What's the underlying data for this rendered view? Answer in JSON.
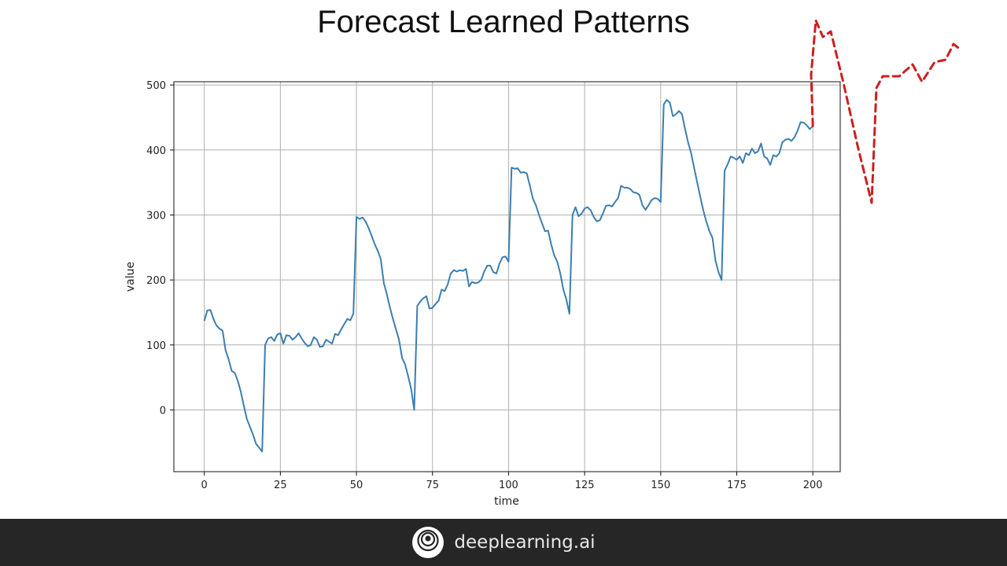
{
  "slide": {
    "title": "Forecast Learned Patterns"
  },
  "footer": {
    "brand": "deeplearning.ai",
    "logo_icon": "deeplearning-ai-logo-icon"
  },
  "chart_data": {
    "type": "line",
    "title": "",
    "xlabel": "time",
    "ylabel": "value",
    "xlim": [
      -10,
      209
    ],
    "ylim": [
      -95,
      505
    ],
    "xticks": [
      0,
      25,
      50,
      75,
      100,
      125,
      150,
      175,
      200
    ],
    "yticks": [
      0,
      100,
      200,
      300,
      400,
      500
    ],
    "grid": true,
    "series": [
      {
        "color": "#3b7fb0",
        "style": "solid",
        "points": [
          [
            0,
            137
          ],
          [
            1,
            153
          ],
          [
            2,
            154
          ],
          [
            3,
            140
          ],
          [
            4,
            130
          ],
          [
            5,
            125
          ],
          [
            6,
            122
          ],
          [
            7,
            92
          ],
          [
            8,
            78
          ],
          [
            9,
            60
          ],
          [
            10,
            57
          ],
          [
            11,
            45
          ],
          [
            12,
            28
          ],
          [
            13,
            6
          ],
          [
            14,
            -14
          ],
          [
            15,
            -26
          ],
          [
            16,
            -38
          ],
          [
            17,
            -52
          ],
          [
            18,
            -58
          ],
          [
            19,
            -64
          ],
          [
            20,
            100
          ],
          [
            21,
            110
          ],
          [
            22,
            112
          ],
          [
            23,
            106
          ],
          [
            24,
            116
          ],
          [
            25,
            118
          ],
          [
            26,
            102
          ],
          [
            27,
            115
          ],
          [
            28,
            114
          ],
          [
            29,
            108
          ],
          [
            30,
            112
          ],
          [
            31,
            118
          ],
          [
            32,
            110
          ],
          [
            33,
            103
          ],
          [
            34,
            98
          ],
          [
            35,
            100
          ],
          [
            36,
            112
          ],
          [
            37,
            108
          ],
          [
            38,
            97
          ],
          [
            39,
            98
          ],
          [
            40,
            108
          ],
          [
            41,
            105
          ],
          [
            42,
            102
          ],
          [
            43,
            117
          ],
          [
            44,
            115
          ],
          [
            45,
            124
          ],
          [
            46,
            132
          ],
          [
            47,
            140
          ],
          [
            48,
            138
          ],
          [
            49,
            148
          ],
          [
            50,
            297
          ],
          [
            51,
            294
          ],
          [
            52,
            296
          ],
          [
            53,
            290
          ],
          [
            54,
            280
          ],
          [
            55,
            268
          ],
          [
            56,
            255
          ],
          [
            57,
            245
          ],
          [
            58,
            232
          ],
          [
            59,
            195
          ],
          [
            60,
            178
          ],
          [
            61,
            158
          ],
          [
            62,
            140
          ],
          [
            63,
            124
          ],
          [
            64,
            108
          ],
          [
            65,
            80
          ],
          [
            66,
            70
          ],
          [
            67,
            52
          ],
          [
            68,
            32
          ],
          [
            69,
            0
          ],
          [
            70,
            160
          ],
          [
            71,
            167
          ],
          [
            72,
            172
          ],
          [
            73,
            175
          ],
          [
            74,
            156
          ],
          [
            75,
            157
          ],
          [
            76,
            163
          ],
          [
            77,
            168
          ],
          [
            78,
            185
          ],
          [
            79,
            183
          ],
          [
            80,
            193
          ],
          [
            81,
            210
          ],
          [
            82,
            215
          ],
          [
            83,
            213
          ],
          [
            84,
            215
          ],
          [
            85,
            214
          ],
          [
            86,
            217
          ],
          [
            87,
            190
          ],
          [
            88,
            197
          ],
          [
            89,
            195
          ],
          [
            90,
            196
          ],
          [
            91,
            200
          ],
          [
            92,
            213
          ],
          [
            93,
            222
          ],
          [
            94,
            222
          ],
          [
            95,
            212
          ],
          [
            96,
            210
          ],
          [
            97,
            225
          ],
          [
            98,
            235
          ],
          [
            99,
            236
          ],
          [
            100,
            228
          ],
          [
            101,
            373
          ],
          [
            102,
            371
          ],
          [
            103,
            372
          ],
          [
            104,
            365
          ],
          [
            105,
            366
          ],
          [
            106,
            364
          ],
          [
            107,
            345
          ],
          [
            108,
            325
          ],
          [
            109,
            315
          ],
          [
            110,
            300
          ],
          [
            111,
            287
          ],
          [
            112,
            275
          ],
          [
            113,
            276
          ],
          [
            114,
            255
          ],
          [
            115,
            238
          ],
          [
            116,
            228
          ],
          [
            117,
            210
          ],
          [
            118,
            185
          ],
          [
            119,
            170
          ],
          [
            120,
            148
          ],
          [
            121,
            300
          ],
          [
            122,
            312
          ],
          [
            123,
            298
          ],
          [
            124,
            302
          ],
          [
            125,
            310
          ],
          [
            126,
            312
          ],
          [
            127,
            307
          ],
          [
            128,
            297
          ],
          [
            129,
            290
          ],
          [
            130,
            292
          ],
          [
            131,
            302
          ],
          [
            132,
            314
          ],
          [
            133,
            315
          ],
          [
            134,
            313
          ],
          [
            135,
            320
          ],
          [
            136,
            326
          ],
          [
            137,
            345
          ],
          [
            138,
            342
          ],
          [
            139,
            342
          ],
          [
            140,
            340
          ],
          [
            141,
            335
          ],
          [
            142,
            334
          ],
          [
            143,
            331
          ],
          [
            144,
            315
          ],
          [
            145,
            308
          ],
          [
            146,
            315
          ],
          [
            147,
            323
          ],
          [
            148,
            326
          ],
          [
            149,
            325
          ],
          [
            150,
            320
          ],
          [
            151,
            470
          ],
          [
            152,
            477
          ],
          [
            153,
            473
          ],
          [
            154,
            452
          ],
          [
            155,
            455
          ],
          [
            156,
            460
          ],
          [
            157,
            455
          ],
          [
            158,
            432
          ],
          [
            159,
            412
          ],
          [
            160,
            395
          ],
          [
            161,
            372
          ],
          [
            162,
            350
          ],
          [
            163,
            328
          ],
          [
            164,
            307
          ],
          [
            165,
            290
          ],
          [
            166,
            275
          ],
          [
            167,
            265
          ],
          [
            168,
            230
          ],
          [
            169,
            212
          ],
          [
            170,
            200
          ],
          [
            171,
            368
          ],
          [
            172,
            378
          ],
          [
            173,
            390
          ],
          [
            174,
            388
          ],
          [
            175,
            385
          ],
          [
            176,
            390
          ],
          [
            177,
            380
          ],
          [
            178,
            395
          ],
          [
            179,
            392
          ],
          [
            180,
            402
          ],
          [
            181,
            395
          ],
          [
            182,
            398
          ],
          [
            183,
            410
          ],
          [
            184,
            390
          ],
          [
            185,
            387
          ],
          [
            186,
            377
          ],
          [
            187,
            392
          ],
          [
            188,
            390
          ],
          [
            189,
            395
          ],
          [
            190,
            412
          ],
          [
            191,
            416
          ],
          [
            192,
            417
          ],
          [
            193,
            414
          ],
          [
            194,
            420
          ],
          [
            195,
            430
          ],
          [
            196,
            443
          ],
          [
            197,
            442
          ],
          [
            198,
            438
          ],
          [
            199,
            432
          ],
          [
            200,
            437
          ]
        ]
      }
    ],
    "annotation_series": {
      "color": "#cc1f1f",
      "style": "dashed",
      "note": "hand-drawn forecast",
      "points": [
        [
          200,
          437
        ],
        [
          200.5,
          470
        ],
        [
          201,
          592
        ],
        [
          203,
          570
        ],
        [
          205,
          576
        ],
        [
          209,
          503
        ]
      ]
    }
  }
}
